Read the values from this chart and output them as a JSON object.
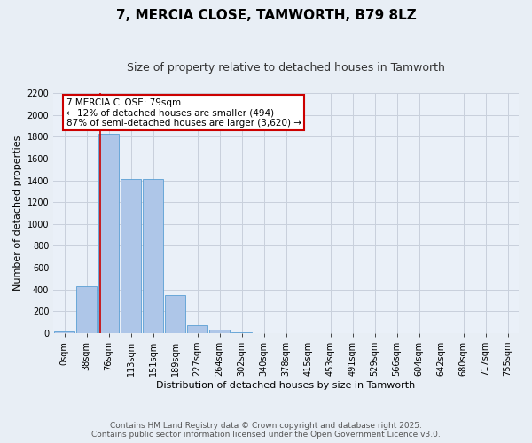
{
  "title": "7, MERCIA CLOSE, TAMWORTH, B79 8LZ",
  "subtitle": "Size of property relative to detached houses in Tamworth",
  "xlabel": "Distribution of detached houses by size in Tamworth",
  "ylabel": "Number of detached properties",
  "bar_labels": [
    "0sqm",
    "38sqm",
    "76sqm",
    "113sqm",
    "151sqm",
    "189sqm",
    "227sqm",
    "264sqm",
    "302sqm",
    "340sqm",
    "378sqm",
    "415sqm",
    "453sqm",
    "491sqm",
    "529sqm",
    "566sqm",
    "604sqm",
    "642sqm",
    "680sqm",
    "717sqm",
    "755sqm"
  ],
  "bar_values": [
    15,
    430,
    1830,
    1415,
    1415,
    350,
    75,
    30,
    10,
    0,
    0,
    0,
    0,
    0,
    0,
    0,
    0,
    0,
    0,
    0,
    0
  ],
  "bar_color": "#aec6e8",
  "bar_edge_color": "#5a9fd4",
  "annotation_text": "7 MERCIA CLOSE: 79sqm\n← 12% of detached houses are smaller (494)\n87% of semi-detached houses are larger (3,620) →",
  "annotation_box_color": "#ffffff",
  "annotation_box_edge_color": "#cc0000",
  "vline_color": "#cc0000",
  "ylim": [
    0,
    2200
  ],
  "yticks": [
    0,
    200,
    400,
    600,
    800,
    1000,
    1200,
    1400,
    1600,
    1800,
    2000,
    2200
  ],
  "grid_color": "#c8d0dc",
  "bg_color": "#e8eef5",
  "plot_bg_color": "#eaf0f8",
  "footer_line1": "Contains HM Land Registry data © Crown copyright and database right 2025.",
  "footer_line2": "Contains public sector information licensed under the Open Government Licence v3.0.",
  "title_fontsize": 11,
  "subtitle_fontsize": 9,
  "axis_label_fontsize": 8,
  "tick_fontsize": 7,
  "annotation_fontsize": 7.5,
  "footer_fontsize": 6.5
}
